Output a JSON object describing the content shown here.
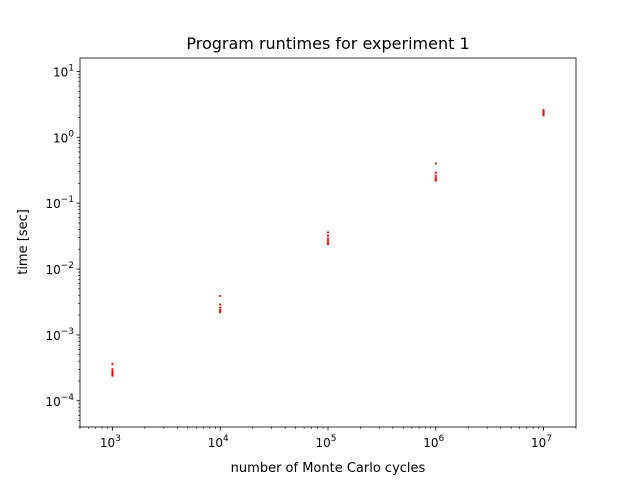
{
  "chart_data": {
    "type": "scatter",
    "title": "Program runtimes for experiment 1",
    "xlabel": "number of Monte Carlo cycles",
    "ylabel": "time [sec]",
    "xscale": "log",
    "yscale": "log",
    "xlim": [
      500,
      20000000
    ],
    "ylim": [
      4e-05,
      16
    ],
    "x_ticks": [
      {
        "value": 1000,
        "base": "10",
        "exp": "3"
      },
      {
        "value": 10000,
        "base": "10",
        "exp": "4"
      },
      {
        "value": 100000,
        "base": "10",
        "exp": "5"
      },
      {
        "value": 1000000,
        "base": "10",
        "exp": "6"
      },
      {
        "value": 10000000,
        "base": "10",
        "exp": "7"
      }
    ],
    "y_ticks": [
      {
        "value": 0.0001,
        "base": "10",
        "exp": "−4"
      },
      {
        "value": 0.001,
        "base": "10",
        "exp": "−3"
      },
      {
        "value": 0.01,
        "base": "10",
        "exp": "−2"
      },
      {
        "value": 0.1,
        "base": "10",
        "exp": "−1"
      },
      {
        "value": 1,
        "base": "10",
        "exp": "0"
      },
      {
        "value": 10,
        "base": "10",
        "exp": "1"
      }
    ],
    "grid": false,
    "marker_color": "#ff0000",
    "series": [
      {
        "points": [
          {
            "x": 1000,
            "y": 0.00036
          },
          {
            "x": 1000,
            "y": 0.0003
          },
          {
            "x": 1000,
            "y": 0.00028
          },
          {
            "x": 1000,
            "y": 0.00027
          },
          {
            "x": 1000,
            "y": 0.00026
          },
          {
            "x": 1000,
            "y": 0.00025
          },
          {
            "x": 1000,
            "y": 0.00024
          },
          {
            "x": 10000,
            "y": 0.0039
          },
          {
            "x": 10000,
            "y": 0.0029
          },
          {
            "x": 10000,
            "y": 0.0026
          },
          {
            "x": 10000,
            "y": 0.0024
          },
          {
            "x": 10000,
            "y": 0.0023
          },
          {
            "x": 10000,
            "y": 0.0022
          },
          {
            "x": 100000,
            "y": 0.036
          },
          {
            "x": 100000,
            "y": 0.032
          },
          {
            "x": 100000,
            "y": 0.029
          },
          {
            "x": 100000,
            "y": 0.027
          },
          {
            "x": 100000,
            "y": 0.025
          },
          {
            "x": 100000,
            "y": 0.024
          },
          {
            "x": 1000000,
            "y": 0.4
          },
          {
            "x": 1000000,
            "y": 0.29
          },
          {
            "x": 1000000,
            "y": 0.26
          },
          {
            "x": 1000000,
            "y": 0.24
          },
          {
            "x": 1000000,
            "y": 0.23
          },
          {
            "x": 1000000,
            "y": 0.22
          },
          {
            "x": 10000000,
            "y": 2.6
          },
          {
            "x": 10000000,
            "y": 2.45
          },
          {
            "x": 10000000,
            "y": 2.35
          },
          {
            "x": 10000000,
            "y": 2.25
          },
          {
            "x": 10000000,
            "y": 2.15
          }
        ]
      }
    ]
  }
}
